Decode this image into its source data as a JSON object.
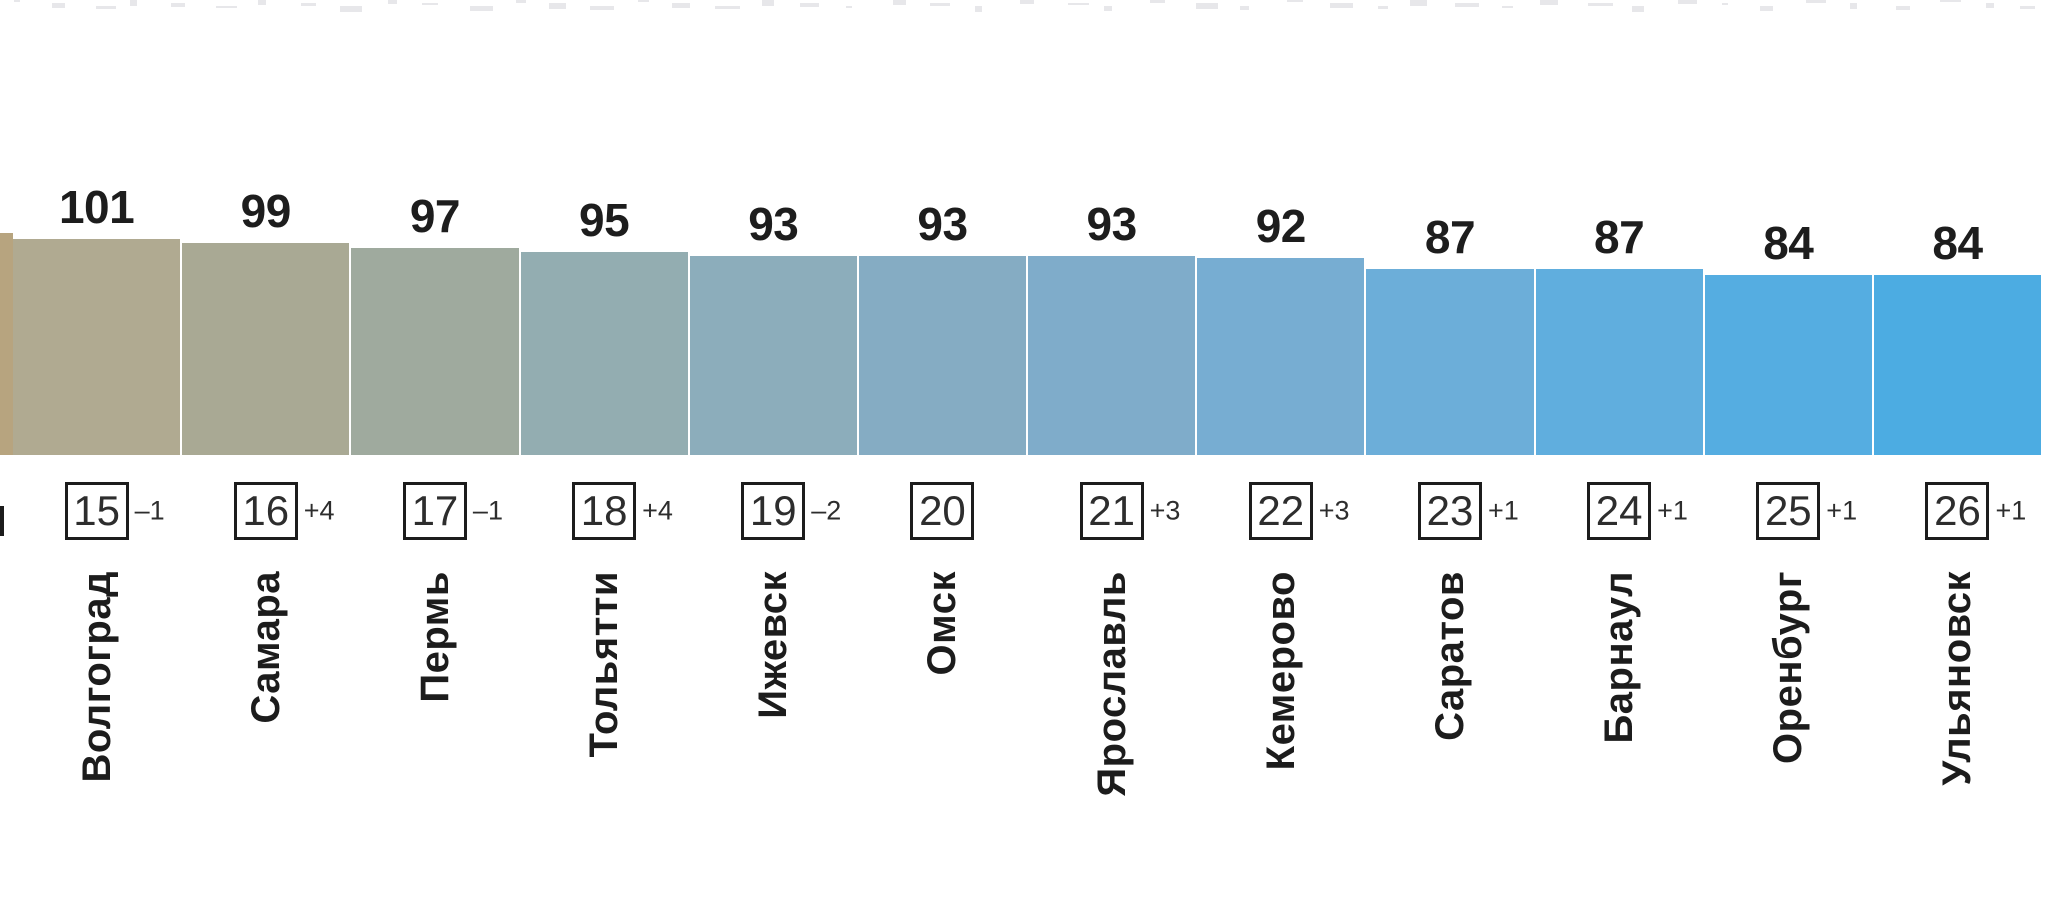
{
  "chart_data": {
    "type": "bar",
    "title": "",
    "categories": [
      "Волгоград",
      "Самара",
      "Пермь",
      "Тольятти",
      "Ижевск",
      "Омск",
      "Ярославль",
      "Кемерово",
      "Саратов",
      "Барнаул",
      "Оренбург",
      "Ульяновск"
    ],
    "values": [
      101,
      99,
      97,
      95,
      93,
      93,
      93,
      92,
      87,
      87,
      84,
      84
    ],
    "ranks": [
      "15",
      "16",
      "17",
      "18",
      "19",
      "20",
      "21",
      "22",
      "23",
      "24",
      "25",
      "26"
    ],
    "rank_changes": [
      "–1",
      "+4",
      "–1",
      "+4",
      "–2",
      "",
      "+3",
      "+3",
      "+1",
      "+1",
      "+1",
      "+1"
    ],
    "bar_colors": [
      "#b0aa91",
      "#a9a994",
      "#9faa9e",
      "#93adb1",
      "#8cadbb",
      "#85acc3",
      "#7facca",
      "#77add2",
      "#6caed9",
      "#60aede",
      "#55ade1",
      "#4cace2"
    ],
    "partial_left_bar_color": "#b7a47f",
    "xlabel": "",
    "ylabel": "",
    "ylim": [
      0,
      101
    ],
    "grid": false,
    "legend": false,
    "value_labels_position": "above-bars",
    "rank_badge_style": "outlined-square",
    "city_label_orientation": "vertical-bottom-to-top"
  }
}
